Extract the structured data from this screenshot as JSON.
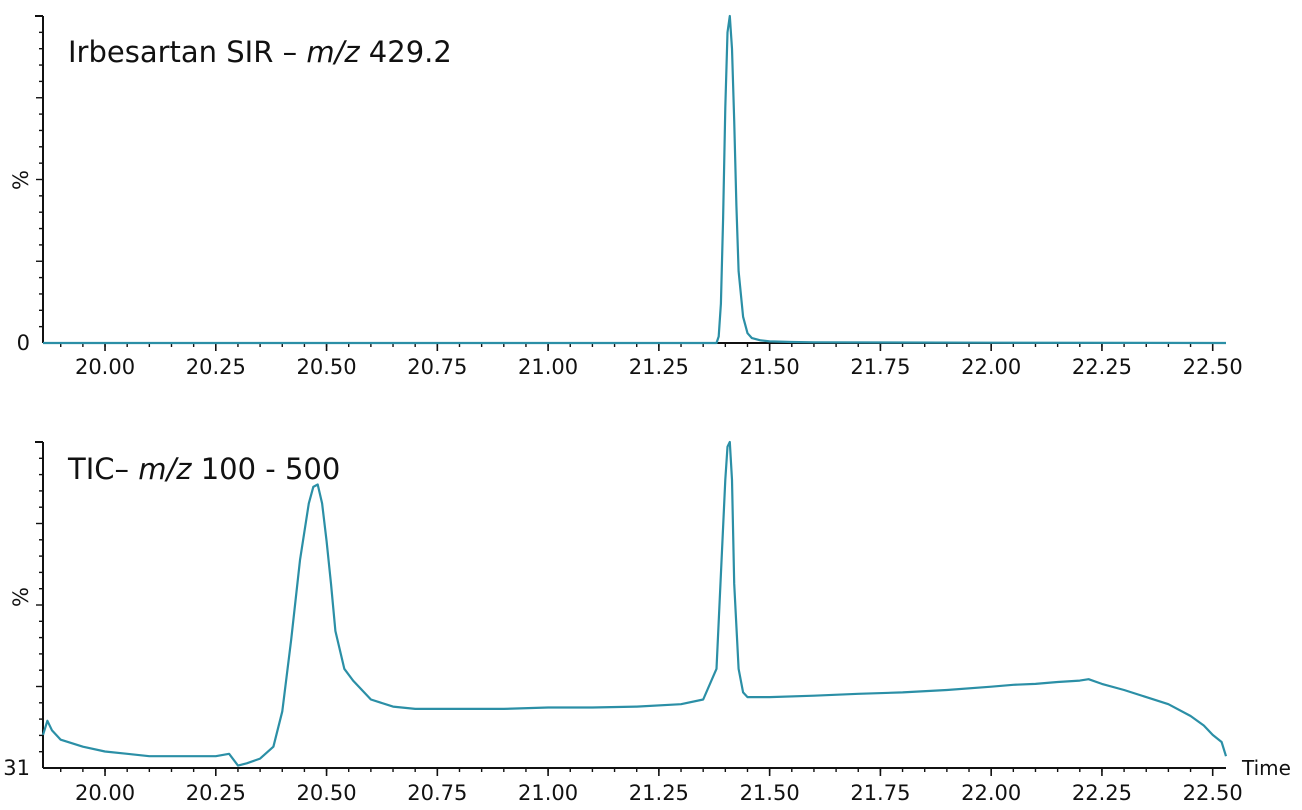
{
  "chart_data": [
    {
      "type": "line",
      "title": "Irbesartan SIR – ",
      "title_mz": "m/z",
      "title_mass": " 429.2",
      "ylabel": "%",
      "y_tick_label": "0",
      "xlim": [
        19.86,
        22.53
      ],
      "ylim": [
        0,
        100
      ],
      "xticks": [
        "20.00",
        "20.25",
        "20.50",
        "20.75",
        "21.00",
        "21.25",
        "21.50",
        "21.75",
        "22.00",
        "22.25",
        "22.50"
      ],
      "line_color": "#2b8fa6",
      "series": [
        {
          "x": [
            19.86,
            21.3,
            21.38,
            21.385,
            21.39,
            21.395,
            21.4,
            21.405,
            21.41,
            21.415,
            21.42,
            21.425,
            21.43,
            21.44,
            21.45,
            21.46,
            21.48,
            21.5,
            21.55,
            21.6,
            22.0,
            22.53
          ],
          "y": [
            0,
            0,
            0,
            2,
            12,
            38,
            72,
            95,
            100,
            90,
            68,
            42,
            22,
            8,
            3,
            1.5,
            0.8,
            0.5,
            0.3,
            0.2,
            0.1,
            0
          ]
        }
      ]
    },
    {
      "type": "line",
      "title": "TIC– ",
      "title_mz": "m/z",
      "title_mass": " 100 - 500",
      "ylabel": "%",
      "y_tick_label": "31",
      "xlabel": "Time",
      "xlim": [
        19.86,
        22.53
      ],
      "ylim": [
        31,
        100
      ],
      "xticks": [
        "20.00",
        "20.25",
        "20.50",
        "20.75",
        "21.00",
        "21.25",
        "21.50",
        "21.75",
        "22.00",
        "22.25",
        "22.50"
      ],
      "line_color": "#2b8fa6",
      "series": [
        {
          "x": [
            19.86,
            19.87,
            19.88,
            19.9,
            19.95,
            20.0,
            20.05,
            20.1,
            20.15,
            20.2,
            20.25,
            20.28,
            20.3,
            20.32,
            20.35,
            20.38,
            20.4,
            20.42,
            20.44,
            20.46,
            20.47,
            20.48,
            20.49,
            20.5,
            20.51,
            20.52,
            20.54,
            20.56,
            20.6,
            20.65,
            20.7,
            20.8,
            20.9,
            21.0,
            21.1,
            21.2,
            21.3,
            21.35,
            21.38,
            21.39,
            21.4,
            21.405,
            21.41,
            21.415,
            21.42,
            21.43,
            21.44,
            21.45,
            21.5,
            21.6,
            21.7,
            21.8,
            21.9,
            22.0,
            22.05,
            22.1,
            22.15,
            22.2,
            22.22,
            22.25,
            22.3,
            22.35,
            22.4,
            22.45,
            22.48,
            22.5,
            22.52,
            22.53
          ],
          "y": [
            38,
            41,
            39,
            37,
            35.5,
            34.5,
            34,
            33.5,
            33.5,
            33.5,
            33.5,
            34,
            31.5,
            32,
            33,
            35.5,
            43,
            58,
            75,
            87,
            90.5,
            91,
            87,
            79,
            70,
            60,
            52,
            49.5,
            45.5,
            44,
            43.5,
            43.5,
            43.5,
            43.8,
            43.8,
            44,
            44.5,
            45.5,
            52,
            72,
            92,
            99,
            100,
            92,
            70,
            52,
            47,
            46,
            46,
            46.3,
            46.7,
            47,
            47.5,
            48.2,
            48.6,
            48.8,
            49.2,
            49.5,
            49.8,
            48.8,
            47.5,
            46,
            44.5,
            42,
            40,
            38,
            36.5,
            33.5
          ]
        }
      ]
    }
  ]
}
